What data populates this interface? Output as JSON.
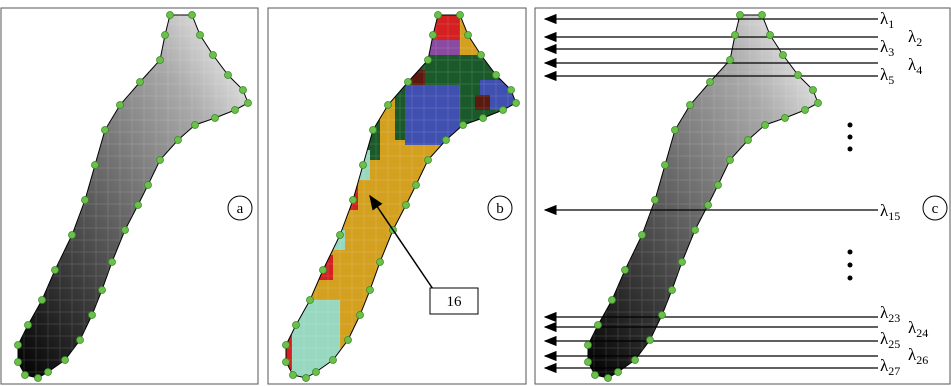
{
  "panels": [
    {
      "label": "a"
    },
    {
      "label": "b",
      "annotation": "16"
    },
    {
      "label": "c"
    }
  ],
  "lambdas": [
    {
      "base": "λ",
      "sub": "1"
    },
    {
      "base": "λ",
      "sub": "2"
    },
    {
      "base": "λ",
      "sub": "3"
    },
    {
      "base": "λ",
      "sub": "4"
    },
    {
      "base": "λ",
      "sub": "5"
    },
    {
      "base": "λ",
      "sub": "15"
    },
    {
      "base": "λ",
      "sub": "23"
    },
    {
      "base": "λ",
      "sub": "24"
    },
    {
      "base": "λ",
      "sub": "25"
    },
    {
      "base": "λ",
      "sub": "26"
    },
    {
      "base": "λ",
      "sub": "27"
    }
  ]
}
